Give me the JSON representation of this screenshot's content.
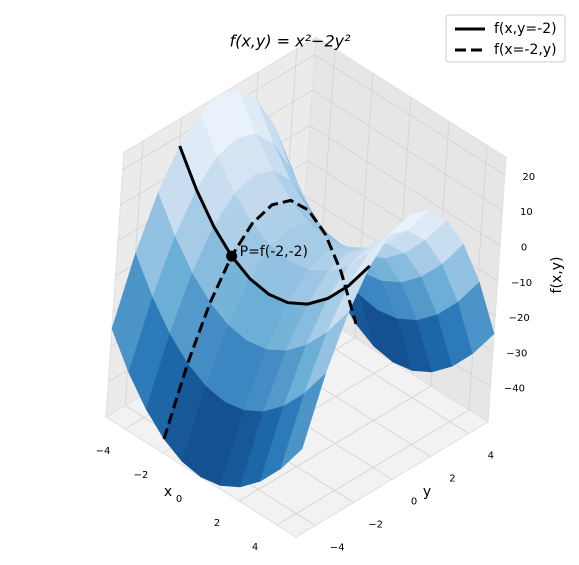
{
  "chart_data": {
    "type": "surface",
    "title": "f(x,y) = x²−2y²",
    "x_label": "x",
    "y_label": "y",
    "z_label": "f(x,y)",
    "x": [
      -5,
      -4,
      -3,
      -2,
      -1,
      0,
      1,
      2,
      3,
      4,
      5
    ],
    "y": [
      -5,
      -4,
      -3,
      -2,
      -1,
      0,
      1,
      2,
      3,
      4,
      5
    ],
    "z": [
      [
        -25,
        -7,
        7,
        17,
        23,
        25,
        23,
        17,
        7,
        -7,
        -25
      ],
      [
        -34,
        -16,
        -2,
        8,
        14,
        16,
        14,
        8,
        -2,
        -16,
        -34
      ],
      [
        -41,
        -23,
        -9,
        1,
        7,
        9,
        7,
        1,
        -9,
        -23,
        -41
      ],
      [
        -46,
        -28,
        -14,
        -4,
        2,
        4,
        2,
        -4,
        -14,
        -28,
        -46
      ],
      [
        -49,
        -31,
        -17,
        -7,
        -1,
        1,
        -1,
        -7,
        -17,
        -31,
        -49
      ],
      [
        -50,
        -32,
        -18,
        -8,
        -2,
        0,
        -2,
        -8,
        -18,
        -32,
        -50
      ],
      [
        -49,
        -31,
        -17,
        -7,
        -1,
        1,
        -1,
        -7,
        -17,
        -31,
        -49
      ],
      [
        -46,
        -28,
        -14,
        -4,
        2,
        4,
        2,
        -4,
        -14,
        -28,
        -46
      ],
      [
        -41,
        -23,
        -9,
        1,
        7,
        9,
        7,
        1,
        -9,
        -23,
        -41
      ],
      [
        -34,
        -16,
        -2,
        8,
        14,
        16,
        14,
        8,
        -2,
        -16,
        -34
      ],
      [
        -25,
        -7,
        7,
        17,
        23,
        25,
        23,
        17,
        7,
        -7,
        -25
      ]
    ],
    "colormap": [
      "#08306b",
      "#2171b5",
      "#6baed6",
      "#c6dbef",
      "#f7fbff"
    ],
    "xlim": [
      -5,
      5
    ],
    "ylim": [
      -5,
      5
    ],
    "zlim": [
      -50,
      25
    ],
    "xticks": [
      {
        "value": -4,
        "label": "−4"
      },
      {
        "value": -2,
        "label": "−2"
      },
      0,
      2,
      4
    ],
    "yticks": [
      {
        "value": -4,
        "label": "−4"
      },
      {
        "value": -2,
        "label": "−2"
      },
      0,
      2,
      4
    ],
    "zticks": [
      {
        "value": -40,
        "label": "−40"
      },
      {
        "value": -30,
        "label": "−30"
      },
      {
        "value": -20,
        "label": "−20"
      },
      {
        "value": -10,
        "label": "−10"
      },
      0,
      10,
      20
    ],
    "series": [
      {
        "name": "f(x,y=-2)",
        "color": "#000000",
        "dash": "solid",
        "x": [
          -5,
          -4,
          -3,
          -2,
          -1,
          0,
          1,
          2,
          3,
          4,
          5
        ],
        "y": [
          -2,
          -2,
          -2,
          -2,
          -2,
          -2,
          -2,
          -2,
          -2,
          -2,
          -2
        ],
        "z": [
          17,
          8,
          1,
          -4,
          -7,
          -8,
          -7,
          -4,
          1,
          8,
          17
        ]
      },
      {
        "name": "f(x=-2,y)",
        "color": "#000000",
        "dash": "dashed",
        "x": [
          -2,
          -2,
          -2,
          -2,
          -2,
          -2,
          -2,
          -2,
          -2,
          -2,
          -2
        ],
        "y": [
          -5,
          -4,
          -3,
          -2,
          -1,
          0,
          1,
          2,
          3,
          4,
          5
        ],
        "z": [
          -46,
          -28,
          -14,
          -4,
          2,
          4,
          2,
          -4,
          -14,
          -28,
          -46
        ]
      }
    ],
    "point": {
      "x": -2,
      "y": -2,
      "z": -4,
      "label": "P=f(-2,-2)"
    },
    "legend": "upper right",
    "grid": true
  }
}
